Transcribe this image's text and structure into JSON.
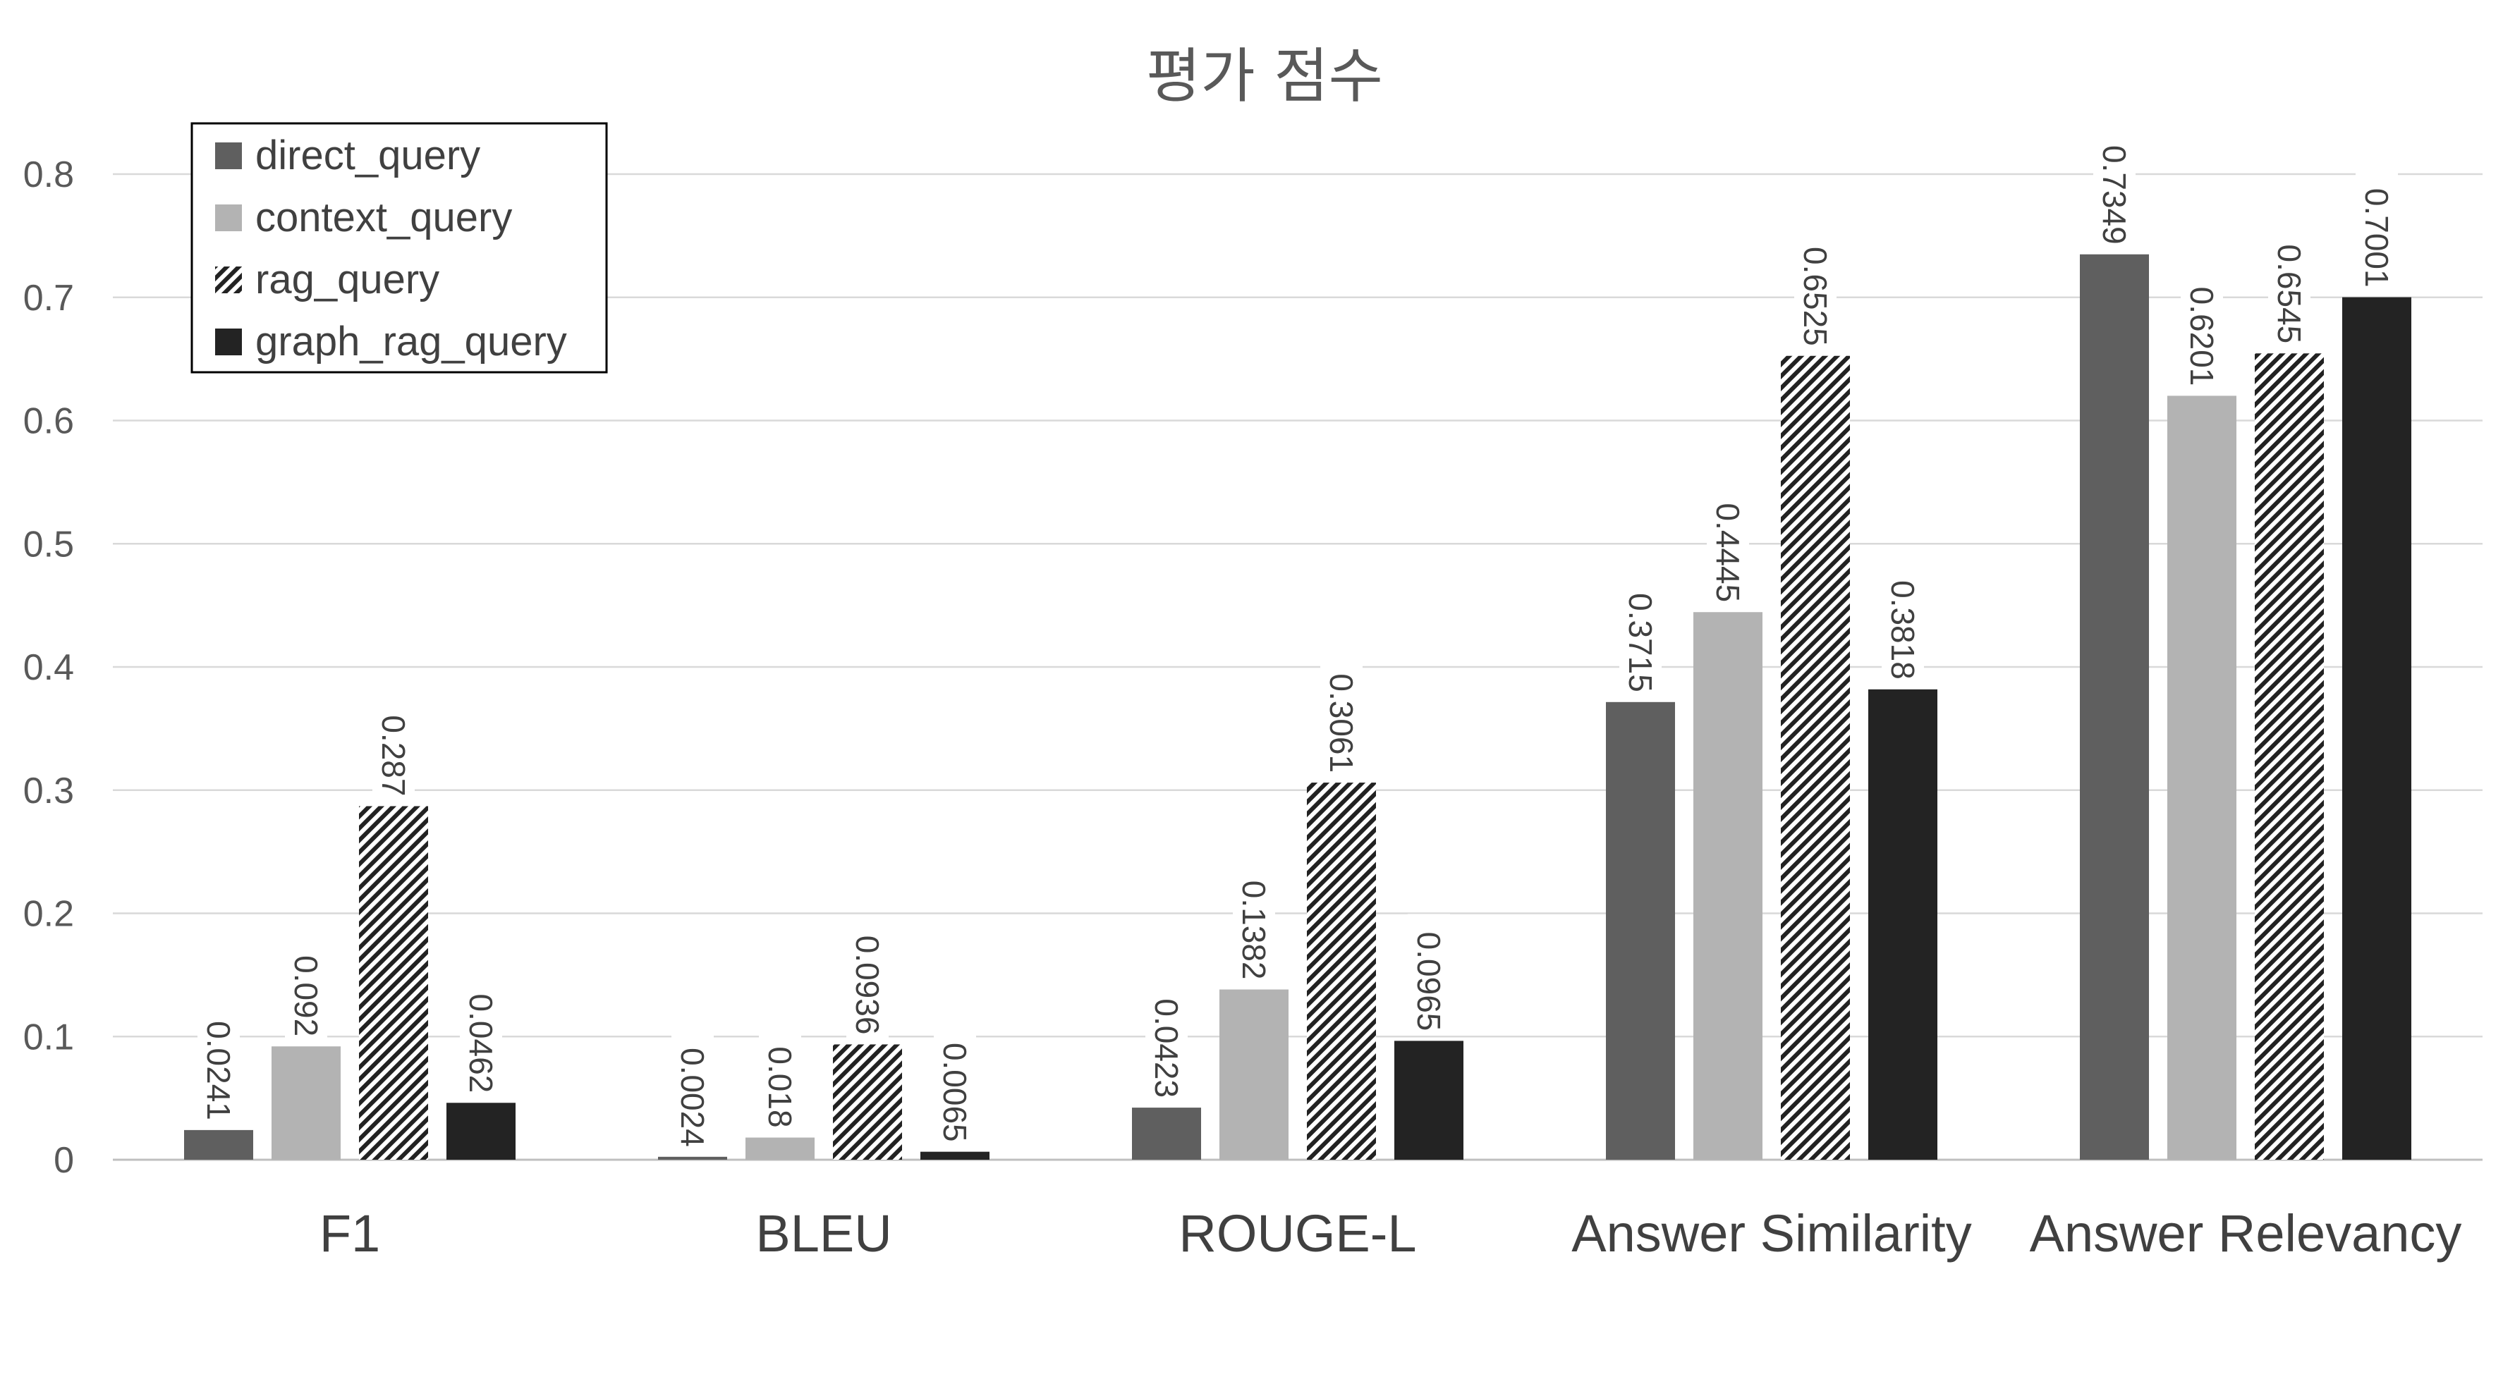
{
  "chart_data": {
    "type": "bar",
    "title": "평가 점수",
    "xlabel": "",
    "ylabel": "",
    "ylim": [
      0,
      0.8
    ],
    "yticks": [
      "0",
      "0.1",
      "0.2",
      "0.3",
      "0.4",
      "0.5",
      "0.6",
      "0.7",
      "0.8"
    ],
    "grid": true,
    "legend_position": "top-left",
    "categories": [
      "F1",
      "BLEU",
      "ROUGE-L",
      "Answer Similarity",
      "Answer Relevancy"
    ],
    "series": [
      {
        "name": "direct_query",
        "color": "#5f5f5f",
        "pattern": "solid",
        "values": [
          0.0241,
          0.0024,
          0.0423,
          0.3715,
          0.7349
        ],
        "labels": [
          "0.0241",
          "0.0024",
          "0.0423",
          "0.3715",
          "0.7349"
        ]
      },
      {
        "name": "context_query",
        "color": "#b3b3b3",
        "pattern": "solid",
        "values": [
          0.092,
          0.018,
          0.1382,
          0.4445,
          0.6201
        ],
        "labels": [
          "0.092",
          "0.018",
          "0.1382",
          "0.4445",
          "0.6201"
        ]
      },
      {
        "name": "rag_query",
        "color": "#222222",
        "pattern": "diagonal-hatch",
        "values": [
          0.287,
          0.0936,
          0.3061,
          0.6525,
          0.6545
        ],
        "labels": [
          "0.287",
          "0.0936",
          "0.3061",
          "0.6525",
          "0.6545"
        ]
      },
      {
        "name": "graph_rag_query",
        "color": "#232323",
        "pattern": "solid",
        "values": [
          0.0462,
          0.0065,
          0.0965,
          0.3818,
          0.7001
        ],
        "labels": [
          "0.0462",
          "0.0065",
          "0.0965",
          "0.3818",
          "0.7001"
        ]
      }
    ]
  }
}
